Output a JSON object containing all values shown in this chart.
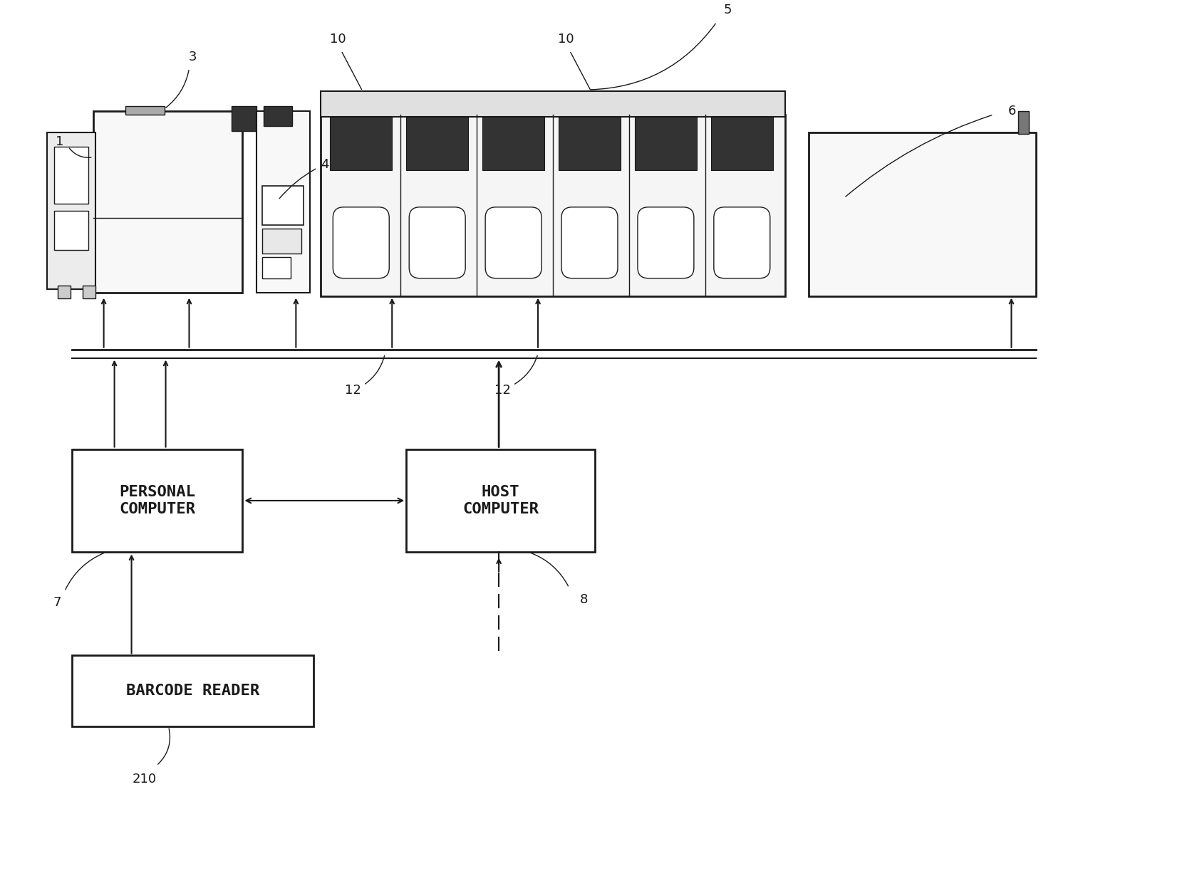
{
  "bg_color": "#ffffff",
  "line_color": "#1a1a1a",
  "dark_fill": "#333333",
  "mid_fill": "#888888",
  "light_fill": "#f8f8f8",
  "labels": {
    "personal_computer": "PERSONAL\nCOMPUTER",
    "host_computer": "HOST\nCOMPUTER",
    "barcode_reader": "BARCODE READER"
  },
  "numbers": {
    "n1": "1",
    "n3": "3",
    "n4": "4",
    "n5": "5",
    "n6": "6",
    "n7": "7",
    "n8": "8",
    "n10a": "10",
    "n10b": "10",
    "n12a": "12",
    "n12b": "12",
    "n210": "210"
  },
  "figsize": [
    16.74,
    12.23
  ],
  "dpi": 100
}
